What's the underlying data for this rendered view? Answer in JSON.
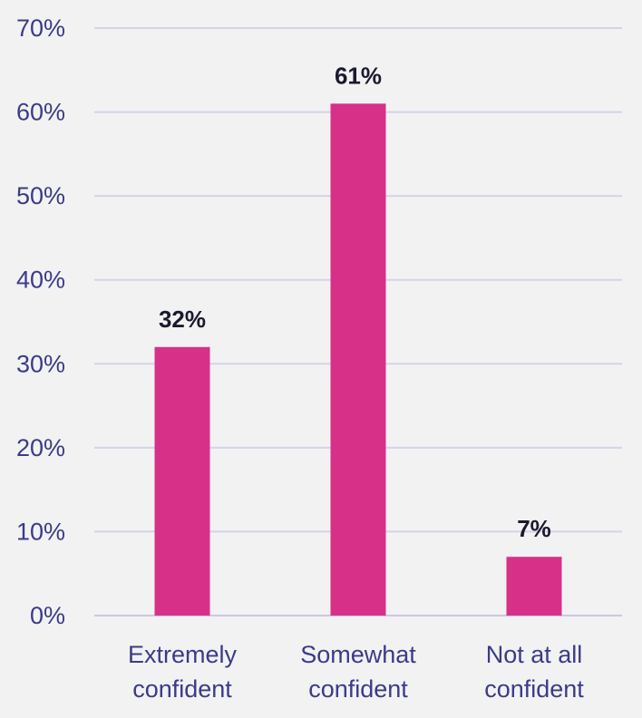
{
  "chart_data": {
    "type": "bar",
    "categories": [
      [
        "Extremely",
        "confident"
      ],
      [
        "Somewhat",
        "confident"
      ],
      [
        "Not at all",
        "confident"
      ]
    ],
    "values": [
      32,
      61,
      7
    ],
    "data_labels": [
      "32%",
      "61%",
      "7%"
    ],
    "y_ticks": [
      "0%",
      "10%",
      "20%",
      "30%",
      "40%",
      "50%",
      "60%",
      "70%"
    ],
    "ylim": [
      0,
      70
    ],
    "grid": true,
    "title": "",
    "xlabel": "",
    "ylabel": ""
  },
  "colors": {
    "bar": "#d63089",
    "axis_text": "#3b3b8a",
    "data_label": "#1a1a2e",
    "gridline": "#d4d3ea",
    "baseline": "#c9c8e3"
  }
}
